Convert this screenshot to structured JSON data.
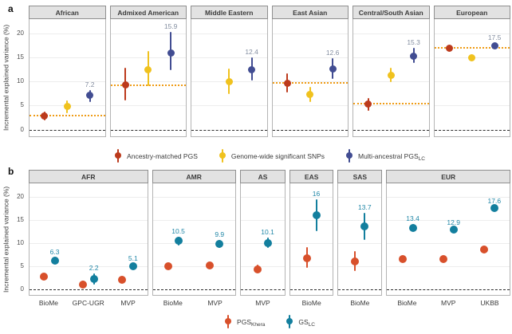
{
  "figure": {
    "panel_a_tag": "a",
    "panel_b_tag": "b"
  },
  "chart_data": [
    {
      "panel": "a",
      "type": "scatter",
      "ylabel": "Incremental explained variance (%)",
      "yticks": [
        0,
        5,
        10,
        15,
        20
      ],
      "ylim": [
        -1.4,
        23
      ],
      "grid": [
        5,
        10,
        15,
        20
      ],
      "zero_line": true,
      "legend_position": "bottom",
      "ref_line_color": "#ef9c17",
      "value_label_color": "#848ea0",
      "series": [
        {
          "name": "Ancestry-matched PGS",
          "sub": "",
          "color": "#bc3a1c"
        },
        {
          "name": "Genome-wide significant SNPs",
          "sub": "",
          "color": "#f0c21e"
        },
        {
          "name": "Multi-ancestral PGS",
          "sub": "LC",
          "color": "#424d92"
        }
      ],
      "facets": [
        {
          "label": "African",
          "weight": 1,
          "ref": 2.9,
          "points": [
            {
              "s": 0,
              "fx": 0.2,
              "v": 2.9,
              "lo": 2.0,
              "hi": 3.8
            },
            {
              "s": 1,
              "fx": 0.5,
              "v": 4.8,
              "lo": 3.4,
              "hi": 6.1
            },
            {
              "s": 2,
              "fx": 0.8,
              "v": 7.2,
              "lo": 5.7,
              "hi": 8.3,
              "label": "7.2"
            }
          ]
        },
        {
          "label": "Admixed American",
          "weight": 1,
          "ref": 9.3,
          "points": [
            {
              "s": 0,
              "fx": 0.2,
              "v": 9.3,
              "lo": 6.0,
              "hi": 12.9
            },
            {
              "s": 1,
              "fx": 0.5,
              "v": 12.4,
              "lo": 9.1,
              "hi": 16.4
            },
            {
              "s": 2,
              "fx": 0.8,
              "v": 15.9,
              "lo": 12.3,
              "hi": 20.3,
              "label": "15.9"
            }
          ]
        },
        {
          "label": "Middle Eastern",
          "weight": 1,
          "ref": null,
          "points": [
            {
              "s": 1,
              "fx": 0.5,
              "v": 10.0,
              "lo": 7.4,
              "hi": 12.7
            },
            {
              "s": 2,
              "fx": 0.8,
              "v": 12.4,
              "lo": 10.2,
              "hi": 15.0,
              "label": "12.4"
            }
          ]
        },
        {
          "label": "East Asian",
          "weight": 1,
          "ref": 9.7,
          "points": [
            {
              "s": 0,
              "fx": 0.2,
              "v": 9.7,
              "lo": 7.8,
              "hi": 11.7
            },
            {
              "s": 1,
              "fx": 0.5,
              "v": 7.3,
              "lo": 5.7,
              "hi": 8.9
            },
            {
              "s": 2,
              "fx": 0.8,
              "v": 12.6,
              "lo": 10.5,
              "hi": 14.8,
              "label": "12.6"
            }
          ]
        },
        {
          "label": "Central/South Asian",
          "weight": 1,
          "ref": 5.4,
          "points": [
            {
              "s": 0,
              "fx": 0.2,
              "v": 5.4,
              "lo": 3.9,
              "hi": 6.6
            },
            {
              "s": 1,
              "fx": 0.5,
              "v": 11.3,
              "lo": 9.9,
              "hi": 12.9
            },
            {
              "s": 2,
              "fx": 0.8,
              "v": 15.3,
              "lo": 13.8,
              "hi": 17.0,
              "label": "15.3"
            }
          ]
        },
        {
          "label": "European",
          "weight": 1,
          "ref": 17.0,
          "points": [
            {
              "s": 0,
              "fx": 0.2,
              "v": 17.0,
              "lo": 16.4,
              "hi": 17.6
            },
            {
              "s": 1,
              "fx": 0.5,
              "v": 15.0,
              "lo": 14.4,
              "hi": 15.6
            },
            {
              "s": 2,
              "fx": 0.8,
              "v": 17.5,
              "lo": 16.9,
              "hi": 18.1,
              "label": "17.5"
            }
          ]
        }
      ]
    },
    {
      "panel": "b",
      "type": "scatter",
      "ylabel": "Incremental explained variance (%)",
      "yticks": [
        0,
        5,
        10,
        15,
        20
      ],
      "ylim": [
        -1.2,
        23
      ],
      "grid": [
        5,
        10,
        15,
        20
      ],
      "zero_line": true,
      "legend_position": "bottom",
      "ref_line_color": "#ef9c17",
      "value_label_color": "#2187a7",
      "series": [
        {
          "name": "PGS",
          "sub": "Khera",
          "color": "#d8502b"
        },
        {
          "name": "GS",
          "sub": "LC",
          "color": "#137f9e"
        }
      ],
      "facets": [
        {
          "label": "AFR",
          "weight": 149,
          "ref": null,
          "categories": [
            "BioMe",
            "GPC-UGR",
            "MVP"
          ],
          "cat_fx": [
            0.167,
            0.5,
            0.833
          ],
          "points": [
            {
              "s": 0,
              "fx": 0.12,
              "v": 2.8,
              "lo": 2.3,
              "hi": 3.3
            },
            {
              "s": 1,
              "fx": 0.214,
              "v": 6.3,
              "lo": 5.6,
              "hi": 7.0,
              "label": "6.3"
            },
            {
              "s": 0,
              "fx": 0.453,
              "v": 1.1,
              "lo": 0.4,
              "hi": 1.9
            },
            {
              "s": 1,
              "fx": 0.547,
              "v": 2.2,
              "lo": 1.1,
              "hi": 3.4,
              "label": "2.2"
            },
            {
              "s": 0,
              "fx": 0.786,
              "v": 2.0,
              "lo": 1.7,
              "hi": 2.3
            },
            {
              "s": 1,
              "fx": 0.88,
              "v": 5.1,
              "lo": 4.7,
              "hi": 5.5,
              "label": "5.1"
            }
          ]
        },
        {
          "label": "AMR",
          "weight": 105,
          "ref": null,
          "categories": [
            "BioMe",
            "MVP"
          ],
          "cat_fx": [
            0.25,
            0.75
          ],
          "points": [
            {
              "s": 0,
              "fx": 0.19,
              "v": 5.0,
              "lo": 4.4,
              "hi": 5.6
            },
            {
              "s": 1,
              "fx": 0.31,
              "v": 10.5,
              "lo": 9.6,
              "hi": 11.4,
              "label": "10.5"
            },
            {
              "s": 0,
              "fx": 0.69,
              "v": 5.2,
              "lo": 4.6,
              "hi": 5.8
            },
            {
              "s": 1,
              "fx": 0.81,
              "v": 9.9,
              "lo": 9.0,
              "hi": 10.8,
              "label": "9.9"
            }
          ]
        },
        {
          "label": "AS",
          "weight": 57,
          "ref": null,
          "categories": [
            "MVP"
          ],
          "cat_fx": [
            0.5
          ],
          "points": [
            {
              "s": 0,
              "fx": 0.39,
              "v": 4.4,
              "lo": 3.6,
              "hi": 5.3
            },
            {
              "s": 1,
              "fx": 0.61,
              "v": 10.1,
              "lo": 9.0,
              "hi": 11.3,
              "label": "10.1"
            }
          ]
        },
        {
          "label": "EAS",
          "weight": 55,
          "ref": null,
          "categories": [
            "BioMe"
          ],
          "cat_fx": [
            0.5
          ],
          "points": [
            {
              "s": 0,
              "fx": 0.39,
              "v": 6.8,
              "lo": 4.6,
              "hi": 9.1
            },
            {
              "s": 1,
              "fx": 0.61,
              "v": 16.0,
              "lo": 12.6,
              "hi": 19.5,
              "label": "16"
            }
          ]
        },
        {
          "label": "SAS",
          "weight": 56,
          "ref": null,
          "categories": [
            "BioMe"
          ],
          "cat_fx": [
            0.5
          ],
          "points": [
            {
              "s": 0,
              "fx": 0.39,
              "v": 6.0,
              "lo": 3.9,
              "hi": 8.3
            },
            {
              "s": 1,
              "fx": 0.61,
              "v": 13.7,
              "lo": 10.8,
              "hi": 16.6,
              "label": "13.7"
            }
          ]
        },
        {
          "label": "EUR",
          "weight": 155,
          "ref": null,
          "categories": [
            "BioMe",
            "MVP",
            "UKBB"
          ],
          "cat_fx": [
            0.167,
            0.5,
            0.833
          ],
          "points": [
            {
              "s": 0,
              "fx": 0.125,
              "v": 6.5,
              "lo": 6.0,
              "hi": 7.0
            },
            {
              "s": 1,
              "fx": 0.209,
              "v": 13.4,
              "lo": 12.7,
              "hi": 14.1,
              "label": "13.4"
            },
            {
              "s": 0,
              "fx": 0.458,
              "v": 6.6,
              "lo": 6.3,
              "hi": 6.9
            },
            {
              "s": 1,
              "fx": 0.542,
              "v": 12.9,
              "lo": 12.4,
              "hi": 13.4,
              "label": "12.9"
            },
            {
              "s": 0,
              "fx": 0.791,
              "v": 8.7,
              "lo": 8.5,
              "hi": 8.9
            },
            {
              "s": 1,
              "fx": 0.875,
              "v": 17.6,
              "lo": 17.2,
              "hi": 18.0,
              "label": "17.6"
            }
          ]
        }
      ]
    }
  ]
}
